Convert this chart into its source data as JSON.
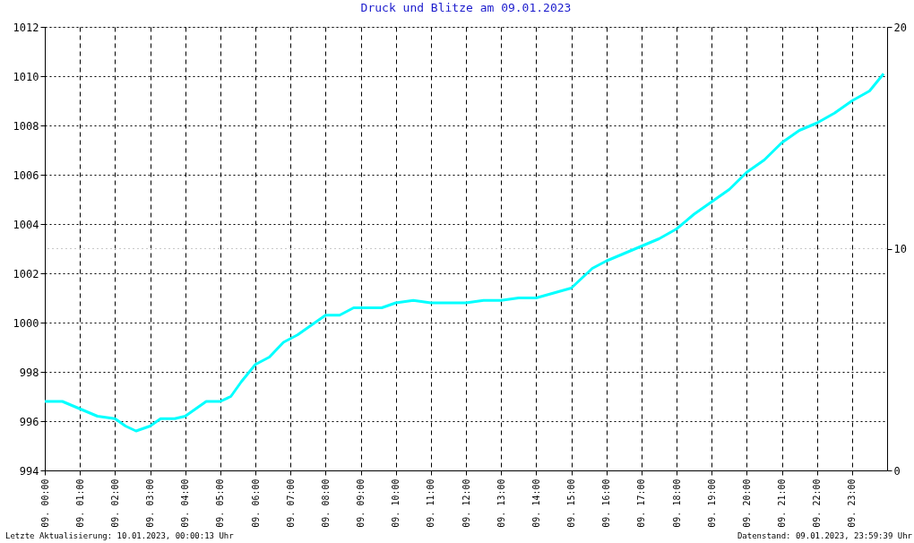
{
  "chart_data": {
    "type": "line",
    "title": "Druck und Blitze am 09.01.2023",
    "x": [
      "2023-01-09T00:00",
      "2023-01-09T00:30",
      "2023-01-09T01:00",
      "2023-01-09T01:30",
      "2023-01-09T02:00",
      "2023-01-09T02:18",
      "2023-01-09T02:36",
      "2023-01-09T03:00",
      "2023-01-09T03:18",
      "2023-01-09T03:42",
      "2023-01-09T04:00",
      "2023-01-09T04:18",
      "2023-01-09T04:36",
      "2023-01-09T05:00",
      "2023-01-09T05:18",
      "2023-01-09T05:36",
      "2023-01-09T06:00",
      "2023-01-09T06:24",
      "2023-01-09T06:48",
      "2023-01-09T07:12",
      "2023-01-09T07:36",
      "2023-01-09T08:00",
      "2023-01-09T08:24",
      "2023-01-09T08:48",
      "2023-01-09T09:12",
      "2023-01-09T09:36",
      "2023-01-09T10:00",
      "2023-01-09T10:30",
      "2023-01-09T11:00",
      "2023-01-09T11:30",
      "2023-01-09T12:00",
      "2023-01-09T12:30",
      "2023-01-09T13:00",
      "2023-01-09T13:30",
      "2023-01-09T14:00",
      "2023-01-09T14:30",
      "2023-01-09T15:00",
      "2023-01-09T15:18",
      "2023-01-09T15:36",
      "2023-01-09T16:00",
      "2023-01-09T16:30",
      "2023-01-09T17:00",
      "2023-01-09T17:30",
      "2023-01-09T18:00",
      "2023-01-09T18:30",
      "2023-01-09T19:00",
      "2023-01-09T19:30",
      "2023-01-09T20:00",
      "2023-01-09T20:30",
      "2023-01-09T21:00",
      "2023-01-09T21:30",
      "2023-01-09T22:00",
      "2023-01-09T22:30",
      "2023-01-09T23:00",
      "2023-01-09T23:30",
      "2023-01-09T23:54"
    ],
    "series": [
      {
        "color": "#00ffff",
        "values": [
          996.8,
          996.8,
          996.5,
          996.2,
          996.1,
          995.8,
          995.6,
          995.8,
          996.1,
          996.1,
          996.2,
          996.5,
          996.8,
          996.8,
          997.0,
          997.6,
          998.3,
          998.6,
          999.2,
          999.5,
          999.9,
          1000.3,
          1000.3,
          1000.6,
          1000.6,
          1000.6,
          1000.8,
          1000.9,
          1000.8,
          1000.8,
          1000.8,
          1000.9,
          1000.9,
          1001.0,
          1001.0,
          1001.2,
          1001.4,
          1001.8,
          1002.2,
          1002.5,
          1002.8,
          1003.1,
          1003.4,
          1003.8,
          1004.4,
          1004.9,
          1005.4,
          1006.1,
          1006.6,
          1007.3,
          1007.8,
          1008.1,
          1008.5,
          1009.0,
          1009.4,
          1010.1
        ]
      }
    ],
    "xlim": [
      "2023-01-09T00:00",
      "2023-01-10T00:00"
    ],
    "xticks": [
      {
        "value": "2023-01-09T00:00",
        "label": "09. 00:00"
      },
      {
        "value": "2023-01-09T01:00",
        "label": "09. 01:00"
      },
      {
        "value": "2023-01-09T02:00",
        "label": "09. 02:00"
      },
      {
        "value": "2023-01-09T03:00",
        "label": "09. 03:00"
      },
      {
        "value": "2023-01-09T04:00",
        "label": "09. 04:00"
      },
      {
        "value": "2023-01-09T05:00",
        "label": "09. 05:00"
      },
      {
        "value": "2023-01-09T06:00",
        "label": "09. 06:00"
      },
      {
        "value": "2023-01-09T07:00",
        "label": "09. 07:00"
      },
      {
        "value": "2023-01-09T08:00",
        "label": "09. 08:00"
      },
      {
        "value": "2023-01-09T09:00",
        "label": "09. 09:00"
      },
      {
        "value": "2023-01-09T10:00",
        "label": "09. 10:00"
      },
      {
        "value": "2023-01-09T11:00",
        "label": "09. 11:00"
      },
      {
        "value": "2023-01-09T12:00",
        "label": "09. 12:00"
      },
      {
        "value": "2023-01-09T13:00",
        "label": "09. 13:00"
      },
      {
        "value": "2023-01-09T14:00",
        "label": "09. 14:00"
      },
      {
        "value": "2023-01-09T15:00",
        "label": "09. 15:00"
      },
      {
        "value": "2023-01-09T16:00",
        "label": "09. 16:00"
      },
      {
        "value": "2023-01-09T17:00",
        "label": "09. 17:00"
      },
      {
        "value": "2023-01-09T18:00",
        "label": "09. 18:00"
      },
      {
        "value": "2023-01-09T19:00",
        "label": "09. 19:00"
      },
      {
        "value": "2023-01-09T20:00",
        "label": "09. 20:00"
      },
      {
        "value": "2023-01-09T21:00",
        "label": "09. 21:00"
      },
      {
        "value": "2023-01-09T22:00",
        "label": "09. 22:00"
      },
      {
        "value": "2023-01-09T23:00",
        "label": "09. 23:00"
      }
    ],
    "ylim": [
      994,
      1012
    ],
    "yticks": [
      994,
      996,
      998,
      1000,
      1002,
      1004,
      1006,
      1008,
      1010,
      1012
    ],
    "y2lim": [
      0,
      20
    ],
    "y2ticks": [
      0,
      10,
      20
    ],
    "ref_lines": [
      {
        "axis": "y2",
        "value": 10,
        "color": "#c8c8c8",
        "line_style": "dotted"
      }
    ],
    "grid": true,
    "legend": false,
    "line_style": "solid",
    "annotations": [
      "Letzte Aktualisierung: 10.01.2023, 00:00:13 Uhr",
      "Datenstand: 09.01.2023, 23:59:39 Uhr"
    ]
  }
}
